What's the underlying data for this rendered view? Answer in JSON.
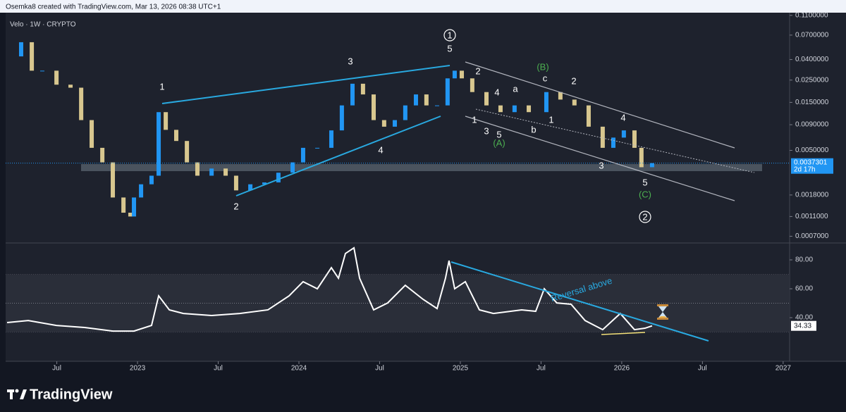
{
  "header": {
    "text": "Osemka8 created with TradingView.com, Mar 13, 2026 08:38 UTC+1"
  },
  "footer": {
    "brand": "TradingView"
  },
  "chart_data": [
    {
      "type": "candlestick",
      "title": "Velo · 1W · CRYPTO",
      "log_scale": true,
      "up_color": "#2196f3",
      "down_color": "#d8c78f",
      "x": [
        2022.192,
        2022.279,
        2022.345,
        2022.41,
        2022.498,
        2022.585,
        2022.651,
        2022.716,
        2022.782,
        2022.847,
        2022.913,
        2022.956,
        2022.978,
        2023.022,
        2023.087,
        2023.131,
        2023.175,
        2023.24,
        2023.306,
        2023.371,
        2023.459,
        2023.546,
        2023.611,
        2023.699,
        2023.786,
        2023.873,
        2023.961,
        2024.026,
        2024.114,
        2024.201,
        2024.266,
        2024.332,
        2024.397,
        2024.463,
        2024.528,
        2024.594,
        2024.659,
        2024.725,
        2024.79,
        2024.856,
        2024.921,
        2024.965,
        2025.009,
        2025.074,
        2025.162,
        2025.249,
        2025.336,
        2025.424,
        2025.533,
        2025.62,
        2025.707,
        2025.795,
        2025.882,
        2025.948,
        2026.013,
        2026.079,
        2026.122,
        2026.188
      ],
      "values": [
        0.043,
        0.0595,
        0.031,
        0.031,
        0.0225,
        0.021,
        0.01,
        0.0053,
        0.0038,
        0.0017,
        0.0012,
        0.0011,
        0.0017,
        0.0023,
        0.0028,
        0.012,
        0.008,
        0.0062,
        0.0038,
        0.0028,
        0.0033,
        0.0028,
        0.002,
        0.0023,
        0.0024,
        0.003,
        0.0038,
        0.0053,
        0.0053,
        0.0079,
        0.014,
        0.023,
        0.018,
        0.01,
        0.0086,
        0.01,
        0.014,
        0.018,
        0.014,
        0.014,
        0.026,
        0.031,
        0.026,
        0.019,
        0.014,
        0.012,
        0.014,
        0.012,
        0.019,
        0.016,
        0.014,
        0.0086,
        0.0053,
        0.0067,
        0.0079,
        0.0053,
        0.0034,
        0.0037301
      ],
      "countdown": "2d 17h",
      "xlim": [
        2022.183,
        2027.04
      ],
      "ylim": [
        0.0006,
        0.117
      ],
      "yticks": [
        {
          "value": 0.11,
          "label": "0.1100000"
        },
        {
          "value": 0.07,
          "label": "0.0700000"
        },
        {
          "value": 0.04,
          "label": "0.0400000"
        },
        {
          "value": 0.025,
          "label": "0.0250000"
        },
        {
          "value": 0.015,
          "label": "0.0150000"
        },
        {
          "value": 0.009,
          "label": "0.0090000"
        },
        {
          "value": 0.005,
          "label": "0.0050000"
        },
        {
          "value": 0.0018,
          "label": "0.0018000"
        },
        {
          "value": 0.0011,
          "label": "0.0011000"
        },
        {
          "value": 0.0007,
          "label": "0.0007000"
        }
      ],
      "annotations": [
        "1",
        "3",
        "2",
        "4",
        "1",
        "5",
        "2",
        "4",
        "a",
        "c",
        "(B)",
        "2",
        "1",
        "3",
        "5",
        "(A)",
        "b",
        "1",
        "4",
        "3",
        "5",
        "(C)",
        "2"
      ]
    },
    {
      "type": "line",
      "color": "#ffffff",
      "x": [
        2022.192,
        2022.323,
        2022.498,
        2022.672,
        2022.847,
        2022.978,
        2023.087,
        2023.131,
        2023.197,
        2023.284,
        2023.459,
        2023.633,
        2023.808,
        2023.939,
        2024.026,
        2024.114,
        2024.201,
        2024.245,
        2024.288,
        2024.341,
        2024.376,
        2024.463,
        2024.55,
        2024.659,
        2024.769,
        2024.856,
        2024.908,
        2024.93,
        2024.965,
        2025.031,
        2025.118,
        2025.205,
        2025.38,
        2025.467,
        2025.52,
        2025.598,
        2025.686,
        2025.773,
        2025.882,
        2025.991,
        2026.079,
        2026.144,
        2026.188
      ],
      "values": [
        36.6,
        38.0,
        34.6,
        33.2,
        30.7,
        30.7,
        34.6,
        55.1,
        45.4,
        42.9,
        41.5,
        42.9,
        45.4,
        55.1,
        64.9,
        60.0,
        74.6,
        67.3,
        84.4,
        88.3,
        67.3,
        45.4,
        50.2,
        62.4,
        52.7,
        46.3,
        67.3,
        79.5,
        60.0,
        64.9,
        45.4,
        42.9,
        45.4,
        44.4,
        60.0,
        50.2,
        49.3,
        38.0,
        31.7,
        42.9,
        31.7,
        32.7,
        34.33
      ],
      "band": [
        30,
        70
      ],
      "midline": 50,
      "annotation": "Reversal above",
      "xlim": [
        2022.183,
        2027.04
      ],
      "ylim": [
        9.8,
        91.7
      ],
      "yticks": [
        {
          "value": 80,
          "label": "80.00"
        },
        {
          "value": 60,
          "label": "60.00"
        },
        {
          "value": 40,
          "label": "40.00"
        }
      ],
      "xticks": [
        {
          "value": 2022.5,
          "label": "Jul"
        },
        2023,
        {
          "value": 2023.5,
          "label": "Jul"
        },
        2024,
        {
          "value": 2024.5,
          "label": "Jul"
        },
        2025,
        {
          "value": 2025.5,
          "label": "Jul"
        },
        2026,
        {
          "value": 2026.5,
          "label": "Jul"
        },
        2027
      ]
    }
  ]
}
